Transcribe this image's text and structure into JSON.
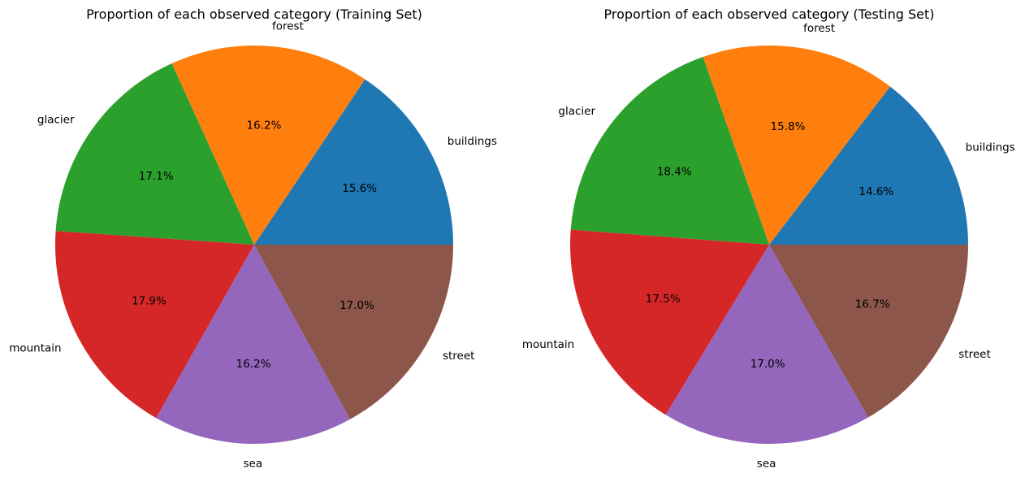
{
  "chart_data": [
    {
      "type": "pie",
      "title": "Proportion of each observed category (Training Set)",
      "categories": [
        "buildings",
        "forest",
        "glacier",
        "mountain",
        "sea",
        "street"
      ],
      "values": [
        15.6,
        16.2,
        17.1,
        17.9,
        16.2,
        17.0
      ],
      "labels": [
        "15.6%",
        "16.2%",
        "17.1%",
        "17.9%",
        "16.2%",
        "17.0%"
      ],
      "colors": [
        "#1f77b4",
        "#ff7f0e",
        "#2ca02c",
        "#d62728",
        "#9467bd",
        "#8c564b"
      ]
    },
    {
      "type": "pie",
      "title": "Proportion of each observed category (Testing Set)",
      "categories": [
        "buildings",
        "forest",
        "glacier",
        "mountain",
        "sea",
        "street"
      ],
      "values": [
        14.6,
        15.8,
        18.4,
        17.5,
        17.0,
        16.7
      ],
      "labels": [
        "14.6%",
        "15.8%",
        "18.4%",
        "17.5%",
        "17.0%",
        "16.7%"
      ],
      "colors": [
        "#1f77b4",
        "#ff7f0e",
        "#2ca02c",
        "#d62728",
        "#9467bd",
        "#8c564b"
      ]
    }
  ]
}
